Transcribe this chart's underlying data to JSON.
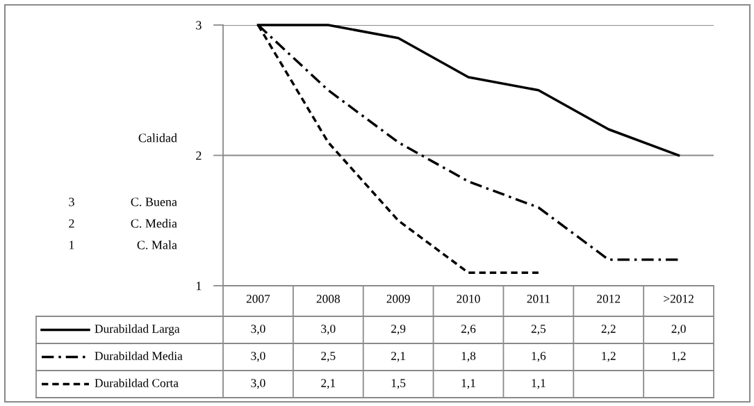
{
  "chart_data": {
    "type": "line",
    "ylabel": "Calidad",
    "annotations": [
      "3",
      "C. Buena",
      "2",
      "C. Media",
      "1",
      "C. Mala"
    ],
    "categories": [
      "2007",
      "2008",
      "2009",
      "2010",
      "2011",
      "2012",
      ">2012"
    ],
    "series": [
      {
        "name": "Durabildad Larga",
        "color": "#000000",
        "line_style": "solid",
        "values": [
          3.0,
          3.0,
          2.9,
          2.6,
          2.5,
          2.2,
          2.0
        ],
        "value_labels": [
          "3,0",
          "3,0",
          "2,9",
          "2,6",
          "2,5",
          "2,2",
          "2,0"
        ]
      },
      {
        "name": "Durabildad Media",
        "color": "#000000",
        "line_style": "dashdot",
        "values": [
          3.0,
          2.5,
          2.1,
          1.8,
          1.6,
          1.2,
          1.2
        ],
        "value_labels": [
          "3,0",
          "2,5",
          "2,1",
          "1,8",
          "1,6",
          "1,2",
          "1,2"
        ]
      },
      {
        "name": "Durabildad Corta",
        "color": "#000000",
        "line_style": "dashed",
        "values": [
          3.0,
          2.1,
          1.5,
          1.1,
          1.1,
          null,
          null
        ],
        "value_labels": [
          "3,0",
          "2,1",
          "1,5",
          "1,1",
          "1,1",
          null,
          null
        ]
      }
    ],
    "ylim": [
      1,
      3
    ],
    "yticks": [
      1,
      2,
      3
    ],
    "grid": "y",
    "legend": "bottom"
  }
}
